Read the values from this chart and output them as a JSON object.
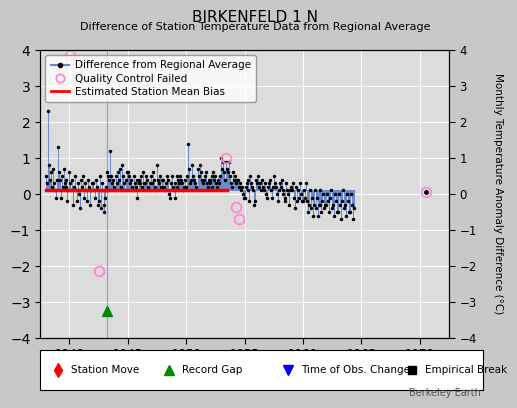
{
  "title": "BIRKENFELD 1 N",
  "subtitle": "Difference of Station Temperature Data from Regional Average",
  "ylabel_right": "Monthly Temperature Anomaly Difference (°C)",
  "xlim": [
    1937.5,
    1972.5
  ],
  "ylim": [
    -4,
    4
  ],
  "yticks": [
    -4,
    -3,
    -2,
    -1,
    0,
    1,
    2,
    3,
    4
  ],
  "xticks": [
    1940,
    1945,
    1950,
    1955,
    1960,
    1965,
    1970
  ],
  "watermark": "Berkeley Earth",
  "bias_y": 0.1,
  "bias_seg1": [
    1938.0,
    1943.2
  ],
  "bias_seg2": [
    1943.2,
    1953.5
  ],
  "gap_marker_x": 1943.2,
  "gap_marker_y": -3.25,
  "line_color": "#6688cc",
  "dot_color": "#000000",
  "bias_color": "#ff0000",
  "qc_color": "#ff88cc",
  "seg1_x": [
    1938.0,
    1938.08,
    1938.17,
    1938.25,
    1938.33,
    1938.42,
    1938.5,
    1938.58,
    1938.67,
    1938.75,
    1938.83,
    1938.92,
    1939.0,
    1939.08,
    1939.17,
    1939.25,
    1939.33,
    1939.42,
    1939.5,
    1939.58,
    1939.67,
    1939.75,
    1939.83,
    1939.92,
    1940.0,
    1940.08,
    1940.17,
    1940.25,
    1940.33,
    1940.42,
    1940.5,
    1940.58,
    1940.67,
    1940.75,
    1940.83,
    1940.92,
    1941.0,
    1941.08,
    1941.17,
    1941.25,
    1941.33,
    1941.42,
    1941.5,
    1941.58,
    1941.67,
    1941.75,
    1941.83,
    1941.92,
    1942.0,
    1942.08,
    1942.17,
    1942.25,
    1942.33,
    1942.42,
    1942.5,
    1942.58,
    1942.67,
    1942.75,
    1942.83,
    1942.92,
    1943.0,
    1943.08,
    1943.17
  ],
  "seg1_y": [
    0.5,
    0.3,
    2.3,
    0.8,
    0.4,
    0.6,
    0.2,
    0.7,
    0.3,
    0.1,
    -0.1,
    0.4,
    1.3,
    0.6,
    0.4,
    -0.1,
    0.5,
    0.2,
    0.7,
    0.3,
    0.4,
    0.2,
    -0.2,
    0.1,
    0.6,
    0.3,
    0.1,
    0.4,
    -0.3,
    0.2,
    0.5,
    0.1,
    -0.2,
    0.3,
    0.0,
    -0.4,
    0.4,
    0.2,
    0.5,
    -0.1,
    0.3,
    0.1,
    -0.2,
    0.4,
    0.2,
    -0.3,
    0.1,
    0.3,
    0.3,
    0.1,
    -0.1,
    0.4,
    0.2,
    -0.3,
    -0.2,
    0.5,
    -0.4,
    0.3,
    0.1,
    -0.5,
    -0.3,
    -0.1,
    0.2
  ],
  "seg2_x": [
    1943.25,
    1943.33,
    1943.42,
    1943.5,
    1943.58,
    1943.67,
    1943.75,
    1943.83,
    1943.92,
    1944.0,
    1944.08,
    1944.17,
    1944.25,
    1944.33,
    1944.42,
    1944.5,
    1944.58,
    1944.67,
    1944.75,
    1944.83,
    1944.92,
    1945.0,
    1945.08,
    1945.17,
    1945.25,
    1945.33,
    1945.42,
    1945.5,
    1945.58,
    1945.67,
    1945.75,
    1945.83,
    1945.92,
    1946.0,
    1946.08,
    1946.17,
    1946.25,
    1946.33,
    1946.42,
    1946.5,
    1946.58,
    1946.67,
    1946.75,
    1946.83,
    1946.92,
    1947.0,
    1947.08,
    1947.17,
    1947.25,
    1947.33,
    1947.42,
    1947.5,
    1947.58,
    1947.67,
    1947.75,
    1947.83,
    1947.92,
    1948.0,
    1948.08,
    1948.17,
    1948.25,
    1948.33,
    1948.42,
    1948.5,
    1948.58,
    1948.67,
    1948.75,
    1948.83,
    1948.92,
    1949.0,
    1949.08,
    1949.17,
    1949.25,
    1949.33,
    1949.42,
    1949.5,
    1949.58,
    1949.67,
    1949.75,
    1949.83,
    1949.92,
    1950.0,
    1950.08,
    1950.17,
    1950.25,
    1950.33,
    1950.42,
    1950.5,
    1950.58,
    1950.67,
    1950.75,
    1950.83,
    1950.92,
    1951.0,
    1951.08,
    1951.17,
    1951.25,
    1951.33,
    1951.42,
    1951.5,
    1951.58,
    1951.67,
    1951.75,
    1951.83,
    1951.92,
    1952.0,
    1952.08,
    1952.17,
    1952.25,
    1952.33,
    1952.42,
    1952.5,
    1952.58,
    1952.67,
    1952.75,
    1952.83,
    1952.92,
    1953.0,
    1953.08,
    1953.17,
    1953.25,
    1953.33
  ],
  "seg2_y": [
    0.6,
    0.5,
    0.4,
    1.2,
    0.5,
    0.3,
    0.4,
    0.2,
    0.1,
    0.5,
    0.3,
    0.6,
    0.4,
    0.7,
    0.2,
    0.8,
    0.5,
    0.3,
    0.1,
    0.4,
    0.6,
    0.6,
    0.5,
    0.3,
    0.4,
    0.2,
    0.1,
    0.5,
    0.3,
    0.2,
    -0.1,
    0.4,
    0.3,
    0.4,
    0.3,
    0.5,
    0.2,
    0.6,
    0.3,
    0.3,
    0.5,
    0.4,
    0.2,
    0.1,
    0.3,
    0.5,
    0.3,
    0.6,
    0.4,
    0.2,
    0.1,
    0.8,
    0.4,
    0.3,
    0.5,
    0.2,
    0.4,
    0.4,
    0.2,
    0.1,
    0.3,
    0.5,
    0.4,
    0.0,
    -0.1,
    0.3,
    0.5,
    0.2,
    0.1,
    -0.1,
    0.3,
    0.2,
    0.5,
    0.4,
    0.3,
    0.5,
    0.4,
    0.3,
    0.1,
    0.2,
    0.4,
    0.2,
    0.5,
    1.4,
    0.7,
    0.3,
    0.4,
    0.8,
    0.5,
    0.4,
    0.3,
    0.2,
    0.1,
    0.7,
    0.5,
    0.8,
    0.6,
    0.4,
    0.3,
    0.4,
    0.5,
    0.6,
    0.3,
    0.2,
    0.4,
    0.4,
    0.3,
    0.5,
    0.2,
    0.6,
    0.4,
    0.5,
    0.3,
    0.2,
    0.4,
    0.3,
    0.5,
    1.0,
    0.7,
    0.9,
    0.6,
    0.4
  ],
  "seg3_x": [
    1953.42,
    1953.5,
    1953.58,
    1953.67,
    1953.75,
    1953.83,
    1953.92,
    1954.0,
    1954.08,
    1954.17,
    1954.25,
    1954.33,
    1954.42,
    1954.5,
    1954.58,
    1954.67,
    1954.75,
    1954.83,
    1954.92,
    1955.0,
    1955.08,
    1955.17,
    1955.25,
    1955.33,
    1955.42,
    1955.5,
    1955.58,
    1955.67,
    1955.75,
    1955.83,
    1955.92,
    1956.0,
    1956.08,
    1956.17,
    1956.25,
    1956.33,
    1956.42,
    1956.5,
    1956.58,
    1956.67,
    1956.75,
    1956.83,
    1956.92,
    1957.0,
    1957.08,
    1957.17,
    1957.25,
    1957.33,
    1957.42,
    1957.5,
    1957.58,
    1957.67,
    1957.75,
    1957.83,
    1957.92,
    1958.0,
    1958.08,
    1958.17,
    1958.25,
    1958.33,
    1958.42,
    1958.5,
    1958.58,
    1958.67,
    1958.75,
    1958.83,
    1958.92,
    1959.0,
    1959.08,
    1959.17,
    1959.25,
    1959.33,
    1959.42,
    1959.5,
    1959.58,
    1959.67,
    1959.75,
    1959.83,
    1959.92,
    1960.0,
    1960.08,
    1960.17,
    1960.25,
    1960.33,
    1960.42,
    1960.5,
    1960.58,
    1960.67,
    1960.75,
    1960.83,
    1960.92,
    1961.0,
    1961.08,
    1961.17,
    1961.25,
    1961.33,
    1961.42,
    1961.5,
    1961.58,
    1961.67,
    1961.75,
    1961.83,
    1961.92,
    1962.0,
    1962.08,
    1962.17,
    1962.25,
    1962.33,
    1962.42,
    1962.5,
    1962.58,
    1962.67,
    1962.75,
    1962.83,
    1962.92,
    1963.0,
    1963.08,
    1963.17,
    1963.25,
    1963.33,
    1963.42,
    1963.5,
    1963.58,
    1963.67,
    1963.75,
    1963.83,
    1963.92,
    1964.0,
    1964.08,
    1964.17,
    1964.25,
    1964.33
  ],
  "seg3_y": [
    0.9,
    0.7,
    0.6,
    0.9,
    0.5,
    0.3,
    0.2,
    0.6,
    0.4,
    0.5,
    0.3,
    0.4,
    0.4,
    0.2,
    0.3,
    0.1,
    0.2,
    0.0,
    -0.1,
    -0.1,
    0.2,
    0.3,
    0.4,
    0.1,
    -0.2,
    0.5,
    0.3,
    0.2,
    0.1,
    -0.3,
    -0.2,
    0.4,
    0.3,
    0.5,
    0.2,
    0.3,
    0.1,
    0.4,
    0.2,
    0.1,
    0.3,
    0.0,
    -0.1,
    0.2,
    0.3,
    0.4,
    0.1,
    -0.1,
    0.2,
    0.5,
    0.3,
    0.2,
    0.0,
    -0.2,
    0.1,
    0.3,
    0.2,
    0.4,
    0.1,
    0.0,
    -0.1,
    -0.2,
    0.3,
    0.1,
    0.0,
    -0.3,
    0.1,
    0.2,
    0.1,
    0.3,
    -0.1,
    -0.4,
    0.2,
    -0.2,
    0.1,
    -0.1,
    0.3,
    0.0,
    -0.2,
    -0.2,
    0.1,
    -0.1,
    0.3,
    -0.2,
    -0.5,
    -0.3,
    0.1,
    -0.4,
    -0.1,
    -0.6,
    -0.3,
    0.1,
    -0.4,
    -0.1,
    -0.6,
    -0.3,
    0.1,
    -0.3,
    -0.5,
    -0.2,
    0.0,
    -0.4,
    -0.3,
    -0.3,
    0.0,
    -0.2,
    -0.5,
    -0.1,
    0.1,
    -0.4,
    -0.3,
    -0.6,
    0.0,
    -0.2,
    -0.5,
    -0.5,
    0.0,
    -0.3,
    -0.7,
    -0.2,
    0.1,
    -0.4,
    -0.3,
    -0.6,
    0.0,
    -0.2,
    -0.5,
    -0.5,
    0.0,
    -0.3,
    -0.7,
    -0.4
  ],
  "late_point_x": [
    1970.5
  ],
  "late_point_y": [
    0.05
  ],
  "qc_failed_x": [
    1940.08,
    1942.5,
    1953.42,
    1954.25,
    1954.5,
    1970.5
  ],
  "qc_failed_y": [
    3.85,
    -2.15,
    1.0,
    -0.35,
    -0.7,
    0.05
  ]
}
